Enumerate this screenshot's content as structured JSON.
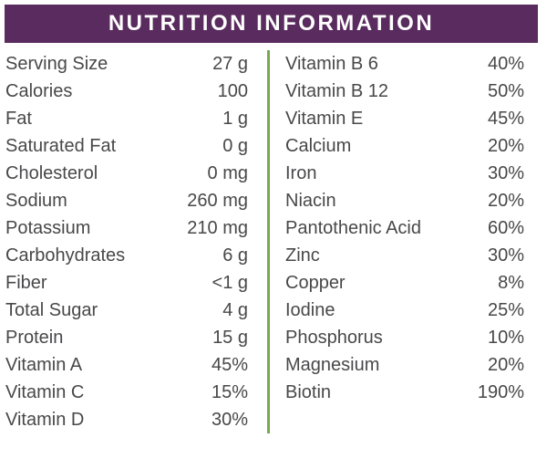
{
  "header": {
    "title": "NUTRITION INFORMATION"
  },
  "colors": {
    "header_bg": "#5a2b5e",
    "header_text": "#ffffff",
    "divider": "#77a94f",
    "text": "#48484a",
    "page_bg": "#ffffff"
  },
  "left_column": [
    {
      "label": "Serving Size",
      "value": "27 g"
    },
    {
      "label": "Calories",
      "value": "100"
    },
    {
      "label": "Fat",
      "value": "1 g"
    },
    {
      "label": "Saturated Fat",
      "value": "0 g"
    },
    {
      "label": "Cholesterol",
      "value": "0 mg"
    },
    {
      "label": "Sodium",
      "value": "260 mg"
    },
    {
      "label": "Potassium",
      "value": "210 mg"
    },
    {
      "label": "Carbohydrates",
      "value": "6 g"
    },
    {
      "label": "Fiber",
      "value": "<1 g"
    },
    {
      "label": "Total Sugar",
      "value": "4 g"
    },
    {
      "label": "Protein",
      "value": "15 g"
    },
    {
      "label": "Vitamin A",
      "value": "45%"
    },
    {
      "label": "Vitamin C",
      "value": "15%"
    },
    {
      "label": "Vitamin D",
      "value": "30%"
    }
  ],
  "right_column": [
    {
      "label": "Vitamin B 6",
      "value": "40%"
    },
    {
      "label": "Vitamin B 12",
      "value": "50%"
    },
    {
      "label": "Vitamin E",
      "value": "45%"
    },
    {
      "label": "Calcium",
      "value": "20%"
    },
    {
      "label": "Iron",
      "value": "30%"
    },
    {
      "label": "Niacin",
      "value": "20%"
    },
    {
      "label": "Pantothenic Acid",
      "value": "60%"
    },
    {
      "label": "Zinc",
      "value": "30%"
    },
    {
      "label": "Copper",
      "value": "8%"
    },
    {
      "label": "Iodine",
      "value": "25%"
    },
    {
      "label": "Phosphorus",
      "value": "10%"
    },
    {
      "label": "Magnesium",
      "value": "20%"
    },
    {
      "label": "Biotin",
      "value": "190%"
    }
  ]
}
